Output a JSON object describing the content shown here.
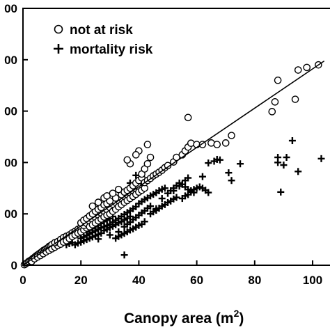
{
  "chart_data": {
    "type": "scatter",
    "xlabel": "Canopy area (m",
    "xlabel_superscript": "2",
    "xlabel_close": ")",
    "ylabel": "",
    "xlim": [
      0,
      106
    ],
    "ylim": [
      0,
      1000
    ],
    "x_ticks": [
      0,
      20,
      40,
      60,
      80,
      100
    ],
    "x_tick_labels": [
      "0",
      "20",
      "40",
      "60",
      "80",
      "100"
    ],
    "y_ticks": [
      0,
      200,
      400,
      600,
      800,
      1000
    ],
    "y_tick_labels": [
      "0",
      "00",
      "00",
      "00",
      "00",
      "00"
    ],
    "legend_position": "top-left",
    "fit_line": {
      "x": [
        0,
        104
      ],
      "y": [
        0,
        795
      ]
    },
    "series": [
      {
        "name": "not at risk",
        "marker": "circle",
        "points": [
          [
            0.5,
            2
          ],
          [
            1,
            6
          ],
          [
            1.5,
            10
          ],
          [
            2,
            15
          ],
          [
            2.5,
            18
          ],
          [
            3,
            22
          ],
          [
            3.5,
            27
          ],
          [
            4,
            31
          ],
          [
            4.5,
            36
          ],
          [
            5,
            40
          ],
          [
            5.5,
            44
          ],
          [
            6,
            48
          ],
          [
            6.5,
            52
          ],
          [
            7,
            57
          ],
          [
            7.5,
            60
          ],
          [
            8,
            64
          ],
          [
            8.5,
            67
          ],
          [
            9,
            73
          ],
          [
            9.5,
            76
          ],
          [
            10,
            80
          ],
          [
            3,
            15
          ],
          [
            4,
            25
          ],
          [
            5,
            32
          ],
          [
            6,
            38
          ],
          [
            7,
            45
          ],
          [
            8,
            52
          ],
          [
            9,
            58
          ],
          [
            10,
            64
          ],
          [
            11,
            70
          ],
          [
            12,
            77
          ],
          [
            11,
            88
          ],
          [
            12,
            92
          ],
          [
            13,
            100
          ],
          [
            14,
            108
          ],
          [
            15,
            113
          ],
          [
            16,
            118
          ],
          [
            17,
            126
          ],
          [
            18,
            132
          ],
          [
            19,
            140
          ],
          [
            20,
            147
          ],
          [
            13,
            82
          ],
          [
            14,
            90
          ],
          [
            15,
            96
          ],
          [
            16,
            104
          ],
          [
            17,
            112
          ],
          [
            18,
            118
          ],
          [
            19,
            125
          ],
          [
            20,
            130
          ],
          [
            21,
            138
          ],
          [
            22,
            145
          ],
          [
            21,
            155
          ],
          [
            22,
            163
          ],
          [
            23,
            172
          ],
          [
            24,
            178
          ],
          [
            25,
            186
          ],
          [
            26,
            195
          ],
          [
            27,
            203
          ],
          [
            28,
            210
          ],
          [
            29,
            217
          ],
          [
            30,
            225
          ],
          [
            23,
            150
          ],
          [
            24,
            158
          ],
          [
            25,
            165
          ],
          [
            26,
            173
          ],
          [
            27,
            180
          ],
          [
            28,
            188
          ],
          [
            29,
            195
          ],
          [
            30,
            200
          ],
          [
            31,
            210
          ],
          [
            32,
            218
          ],
          [
            20,
            165
          ],
          [
            21,
            175
          ],
          [
            22,
            182
          ],
          [
            23,
            192
          ],
          [
            24,
            200
          ],
          [
            25,
            210
          ],
          [
            26,
            218
          ],
          [
            27,
            225
          ],
          [
            28,
            235
          ],
          [
            29,
            240
          ],
          [
            31,
            238
          ],
          [
            32,
            245
          ],
          [
            33,
            252
          ],
          [
            34,
            260
          ],
          [
            35,
            268
          ],
          [
            36,
            275
          ],
          [
            37,
            282
          ],
          [
            38,
            290
          ],
          [
            39,
            298
          ],
          [
            40,
            305
          ],
          [
            33,
            228
          ],
          [
            34,
            236
          ],
          [
            35,
            245
          ],
          [
            36,
            252
          ],
          [
            37,
            260
          ],
          [
            38,
            268
          ],
          [
            39,
            276
          ],
          [
            40,
            285
          ],
          [
            41,
            292
          ],
          [
            42,
            300
          ],
          [
            30,
            250
          ],
          [
            32,
            262
          ],
          [
            34,
            275
          ],
          [
            35,
            285
          ],
          [
            36,
            292
          ],
          [
            37,
            300
          ],
          [
            38,
            310
          ],
          [
            39,
            320
          ],
          [
            40,
            330
          ],
          [
            41,
            340
          ],
          [
            42,
            322
          ],
          [
            43,
            330
          ],
          [
            44,
            338
          ],
          [
            45,
            348
          ],
          [
            46,
            355
          ],
          [
            47,
            362
          ],
          [
            48,
            370
          ],
          [
            49,
            380
          ],
          [
            50,
            388
          ],
          [
            52,
            402
          ],
          [
            24,
            230
          ],
          [
            26,
            245
          ],
          [
            28,
            262
          ],
          [
            29,
            270
          ],
          [
            31,
            280
          ],
          [
            33,
            295
          ],
          [
            41,
            355
          ],
          [
            42,
            375
          ],
          [
            43,
            395
          ],
          [
            44,
            420
          ],
          [
            43,
            470
          ],
          [
            40,
            445
          ],
          [
            39,
            430
          ],
          [
            37,
            395
          ],
          [
            36,
            410
          ],
          [
            53,
            420
          ],
          [
            55,
            430
          ],
          [
            56,
            445
          ],
          [
            57,
            460
          ],
          [
            58,
            475
          ],
          [
            60,
            470
          ],
          [
            62,
            470
          ],
          [
            65,
            476
          ],
          [
            67,
            470
          ],
          [
            70,
            476
          ],
          [
            72,
            505
          ],
          [
            57,
            575
          ],
          [
            86,
            598
          ],
          [
            87,
            636
          ],
          [
            94,
            646
          ],
          [
            102,
            780
          ],
          [
            88,
            720
          ],
          [
            95,
            760
          ],
          [
            98,
            770
          ]
        ]
      },
      {
        "name": "mortality risk",
        "marker": "plus",
        "points": [
          [
            18,
            80
          ],
          [
            19,
            86
          ],
          [
            20,
            90
          ],
          [
            21,
            95
          ],
          [
            22,
            100
          ],
          [
            23,
            105
          ],
          [
            24,
            110
          ],
          [
            25,
            115
          ],
          [
            26,
            120
          ],
          [
            27,
            125
          ],
          [
            20,
            105
          ],
          [
            21,
            110
          ],
          [
            22,
            116
          ],
          [
            23,
            122
          ],
          [
            24,
            128
          ],
          [
            25,
            134
          ],
          [
            26,
            140
          ],
          [
            27,
            146
          ],
          [
            28,
            150
          ],
          [
            29,
            155
          ],
          [
            22,
            130
          ],
          [
            23,
            137
          ],
          [
            24,
            143
          ],
          [
            25,
            150
          ],
          [
            26,
            156
          ],
          [
            27,
            163
          ],
          [
            28,
            170
          ],
          [
            29,
            176
          ],
          [
            30,
            182
          ],
          [
            31,
            190
          ],
          [
            28,
            135
          ],
          [
            29,
            140
          ],
          [
            30,
            147
          ],
          [
            31,
            152
          ],
          [
            32,
            158
          ],
          [
            33,
            165
          ],
          [
            34,
            170
          ],
          [
            35,
            177
          ],
          [
            36,
            183
          ],
          [
            37,
            190
          ],
          [
            30,
            160
          ],
          [
            31,
            168
          ],
          [
            32,
            175
          ],
          [
            33,
            182
          ],
          [
            34,
            190
          ],
          [
            35,
            198
          ],
          [
            36,
            205
          ],
          [
            37,
            212
          ],
          [
            38,
            220
          ],
          [
            39,
            228
          ],
          [
            35,
            150
          ],
          [
            36,
            160
          ],
          [
            37,
            168
          ],
          [
            38,
            178
          ],
          [
            39,
            186
          ],
          [
            40,
            195
          ],
          [
            41,
            204
          ],
          [
            42,
            212
          ],
          [
            43,
            222
          ],
          [
            44,
            230
          ],
          [
            40,
            240
          ],
          [
            41,
            248
          ],
          [
            42,
            256
          ],
          [
            43,
            262
          ],
          [
            44,
            270
          ],
          [
            45,
            276
          ],
          [
            46,
            282
          ],
          [
            47,
            290
          ],
          [
            48,
            296
          ],
          [
            49,
            300
          ],
          [
            44,
            200
          ],
          [
            45,
            208
          ],
          [
            46,
            214
          ],
          [
            47,
            222
          ],
          [
            48,
            230
          ],
          [
            49,
            236
          ],
          [
            50,
            244
          ],
          [
            51,
            250
          ],
          [
            52,
            258
          ],
          [
            53,
            264
          ],
          [
            50,
            280
          ],
          [
            51,
            290
          ],
          [
            52,
            300
          ],
          [
            53,
            310
          ],
          [
            54,
            320
          ],
          [
            55,
            315
          ],
          [
            56,
            305
          ],
          [
            57,
            295
          ],
          [
            58,
            290
          ],
          [
            59,
            283
          ],
          [
            55,
            260
          ],
          [
            56,
            270
          ],
          [
            57,
            275
          ],
          [
            58,
            285
          ],
          [
            59,
            295
          ],
          [
            60,
            300
          ],
          [
            61,
            305
          ],
          [
            62,
            300
          ],
          [
            63,
            292
          ],
          [
            64,
            283
          ],
          [
            32,
            105
          ],
          [
            33,
            112
          ],
          [
            34,
            118
          ],
          [
            35,
            124
          ],
          [
            36,
            130
          ],
          [
            37,
            137
          ],
          [
            38,
            142
          ],
          [
            39,
            148
          ],
          [
            40,
            155
          ],
          [
            41,
            160
          ],
          [
            15,
            80
          ],
          [
            16,
            84
          ],
          [
            17,
            88
          ],
          [
            26,
            102
          ],
          [
            30,
            118
          ],
          [
            33,
            130
          ],
          [
            35,
            40
          ],
          [
            42,
            170
          ],
          [
            46,
            220
          ],
          [
            48,
            260
          ],
          [
            52,
            290
          ],
          [
            54,
            308
          ],
          [
            56,
            330
          ],
          [
            57,
            340
          ],
          [
            62,
            345
          ],
          [
            64,
            398
          ],
          [
            66,
            405
          ],
          [
            67,
            412
          ],
          [
            68,
            410
          ],
          [
            71,
            360
          ],
          [
            72,
            330
          ],
          [
            75,
            395
          ],
          [
            88,
            400
          ],
          [
            90,
            390
          ],
          [
            88,
            420
          ],
          [
            91,
            420
          ],
          [
            93,
            485
          ],
          [
            95,
            365
          ],
          [
            103,
            415
          ],
          [
            89,
            285
          ],
          [
            37,
            320
          ],
          [
            39,
            350
          ],
          [
            41,
            320
          ],
          [
            43,
            330
          ]
        ]
      }
    ]
  }
}
